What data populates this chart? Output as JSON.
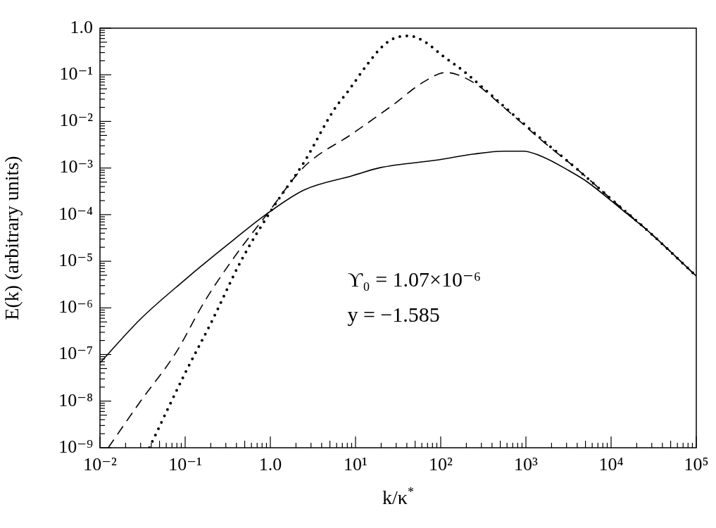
{
  "chart_data": {
    "type": "line",
    "xlabel": "k/κ$^{*}$",
    "ylabel": "E(k) (arbitrary units)",
    "log": "xy",
    "grid": false,
    "legend": false,
    "marker": "none",
    "xlim": [
      0.01,
      100000
    ],
    "ylim": [
      1e-09,
      1
    ],
    "xticks": [
      {
        "value": 0.01,
        "label": "10⁻²"
      },
      {
        "value": 0.1,
        "label": "10⁻¹"
      },
      {
        "value": 1,
        "label": "1.0"
      },
      {
        "value": 10,
        "label": "10¹"
      },
      {
        "value": 100,
        "label": "10²"
      },
      {
        "value": 1000,
        "label": "10³"
      },
      {
        "value": 10000,
        "label": "10⁴"
      },
      {
        "value": 100000,
        "label": "10⁵"
      }
    ],
    "yticks": [
      {
        "value": 1e-09,
        "label": "10⁻⁹"
      },
      {
        "value": 1e-08,
        "label": "10⁻⁸"
      },
      {
        "value": 1e-07,
        "label": "10⁻⁷"
      },
      {
        "value": 1e-06,
        "label": "10⁻⁶"
      },
      {
        "value": 1e-05,
        "label": "10⁻⁵"
      },
      {
        "value": 0.0001,
        "label": "10⁻⁴"
      },
      {
        "value": 0.001,
        "label": "10⁻³"
      },
      {
        "value": 0.01,
        "label": "10⁻²"
      },
      {
        "value": 0.1,
        "label": "10⁻¹"
      },
      {
        "value": 1,
        "label": "1.0"
      }
    ],
    "annotations": [
      "ϒ₀ = 1.07×10⁻⁶",
      "y = −1.585"
    ],
    "series": [
      {
        "color": "#000000",
        "line_style": "solid",
        "x": [
          0.01,
          0.03,
          0.107,
          0.145,
          0.38,
          0.93,
          2.5,
          9.1,
          19.5,
          95,
          245,
          560,
          930,
          1620,
          3160,
          5130,
          15100,
          28200,
          100000
        ],
        "values": [
          6.6e-08,
          5.8e-07,
          4.5e-06,
          7.2e-06,
          3e-05,
          0.000107,
          0.00034,
          0.00068,
          0.00102,
          0.0015,
          0.002,
          0.0023,
          0.0023,
          0.0017,
          0.00089,
          0.00052,
          0.000107,
          4.2e-05,
          4.8e-06
        ]
      },
      {
        "color": "#000000",
        "line_style": "dashed",
        "x": [
          0.0125,
          0.03,
          0.078,
          0.166,
          0.355,
          0.93,
          2.5,
          9.1,
          27,
          62,
          115,
          158,
          263,
          560,
          1620,
          4270,
          11000,
          28200,
          100000
        ],
        "values": [
          1e-09,
          1e-08,
          1.1e-07,
          1.3e-06,
          1.05e-05,
          0.000107,
          0.00107,
          0.0054,
          0.022,
          0.069,
          0.112,
          0.1,
          0.062,
          0.0195,
          0.0036,
          0.00085,
          0.000186,
          4.2e-05,
          4.8e-06
        ]
      },
      {
        "color": "#000000",
        "line_style": "dotted",
        "x": [
          0.038,
          0.1,
          0.204,
          0.457,
          1.07,
          2.5,
          5.5,
          8.5,
          14,
          22,
          33,
          42,
          62,
          107,
          182,
          295,
          630,
          1620,
          4270,
          11000,
          28200,
          100000
        ],
        "values": [
          1e-09,
          4e-08,
          5e-07,
          1.05e-05,
          0.00014,
          0.00135,
          0.017,
          0.049,
          0.174,
          0.45,
          0.66,
          0.68,
          0.54,
          0.25,
          0.123,
          0.058,
          0.017,
          0.0038,
          0.00085,
          0.000186,
          4.2e-05,
          4.8e-06
        ]
      }
    ]
  }
}
